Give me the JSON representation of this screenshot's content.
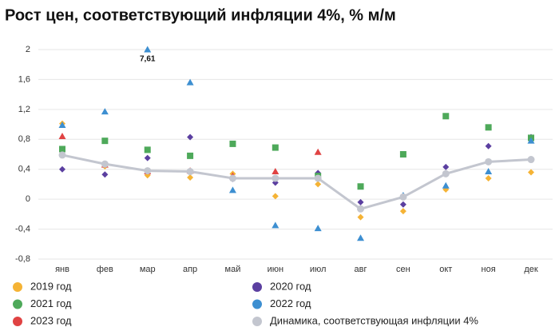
{
  "chart_data": {
    "type": "scatter",
    "title": "Рост цен, соответствующий инфляции 4%, % м/м",
    "categories": [
      "янв",
      "фев",
      "мар",
      "апр",
      "май",
      "июн",
      "июл",
      "авг",
      "сен",
      "окт",
      "ноя",
      "дек"
    ],
    "ylim": [
      -0.8,
      2
    ],
    "yticks": [
      {
        "value": -0.8,
        "label": "-0,8"
      },
      {
        "value": -0.4,
        "label": "-0,4"
      },
      0,
      {
        "value": 0.4,
        "label": "0,4"
      },
      {
        "value": 0.8,
        "label": "0,8"
      },
      {
        "value": 1.2,
        "label": "1,2"
      },
      {
        "value": 1.6,
        "label": "1,6"
      },
      2
    ],
    "grid": true,
    "series": [
      {
        "name": "2019 год",
        "color": "#f5b335",
        "marker": "diamond",
        "values": [
          1.01,
          0.44,
          0.32,
          0.29,
          0.34,
          0.04,
          0.2,
          -0.24,
          -0.16,
          0.13,
          0.28,
          0.36
        ]
      },
      {
        "name": "2020 год",
        "color": "#5b3fa0",
        "marker": "diamond",
        "values": [
          0.4,
          0.33,
          0.55,
          0.83,
          0.27,
          0.22,
          0.35,
          -0.04,
          -0.07,
          0.43,
          0.71,
          0.83
        ]
      },
      {
        "name": "2021 год",
        "color": "#4ea95a",
        "marker": "square",
        "values": [
          0.67,
          0.78,
          0.66,
          0.58,
          0.74,
          0.69,
          0.31,
          0.17,
          0.6,
          1.11,
          0.96,
          0.82
        ]
      },
      {
        "name": "2022 год",
        "color": "#3d8fd1",
        "marker": "triangle",
        "values": [
          0.99,
          1.17,
          7.61,
          1.56,
          0.12,
          -0.35,
          -0.39,
          -0.52,
          0.05,
          0.18,
          0.37,
          0.78
        ],
        "value_labels": [
          null,
          null,
          "7,61",
          null,
          null,
          null,
          null,
          null,
          null,
          null,
          null,
          null
        ]
      },
      {
        "name": "2023 год",
        "color": "#e04343",
        "marker": "triangle",
        "values": [
          0.84,
          0.46,
          0.37,
          0.38,
          0.31,
          0.37,
          0.63,
          null,
          null,
          null,
          null,
          null
        ]
      },
      {
        "name": "Динамика, соответствующая инфляции 4%",
        "color": "#c3c6cf",
        "marker": "circle",
        "line": true,
        "values": [
          0.59,
          0.47,
          0.38,
          0.37,
          0.28,
          0.28,
          0.28,
          -0.13,
          0.03,
          0.34,
          0.5,
          0.53
        ]
      }
    ]
  }
}
